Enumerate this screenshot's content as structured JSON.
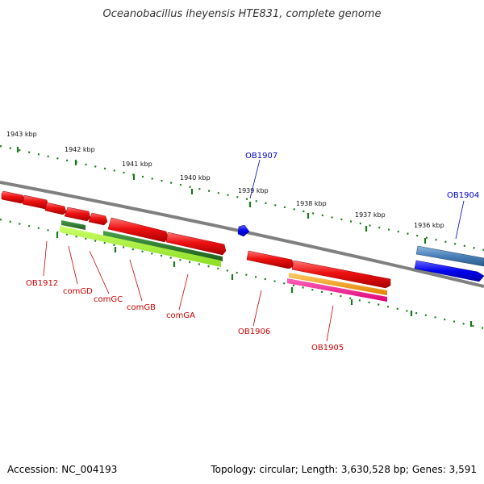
{
  "title": "Oceanobacillus iheyensis HTE831, complete genome",
  "footer": {
    "accession": "Accession: NC_004193",
    "summary": "Topology: circular; Length: 3,630,528 bp; Genes: 3,591"
  },
  "scale_labels": [
    "1943 kbp",
    "1942 kbp",
    "1941 kbp",
    "1940 kbp",
    "1939 kbp",
    "1938 kbp",
    "1937 kbp",
    "1936 kbp"
  ],
  "genes": [
    {
      "label": "OB1912",
      "color": "#cc0000"
    },
    {
      "label": "comGD",
      "color": "#cc0000"
    },
    {
      "label": "comGC",
      "color": "#cc0000"
    },
    {
      "label": "comGB",
      "color": "#cc0000"
    },
    {
      "label": "comGA",
      "color": "#cc0000"
    },
    {
      "label": "OB1907",
      "color": "#0000cc"
    },
    {
      "label": "OB1906",
      "color": "#cc0000"
    },
    {
      "label": "OB1905",
      "color": "#cc0000"
    },
    {
      "label": "OB1904",
      "color": "#0000cc"
    }
  ],
  "colors": {
    "backbone": "#808080",
    "tick": "#1a7a1a",
    "gene_red": "#ee1111",
    "gene_blue": "#0000ee",
    "gene_steelblue": "#4a80b8",
    "gene_darkgreen": "#2e7d2e",
    "gene_lightgreen": "#99ee33",
    "gene_orange": "#ff9900",
    "gene_pink": "#ff1a8c"
  }
}
